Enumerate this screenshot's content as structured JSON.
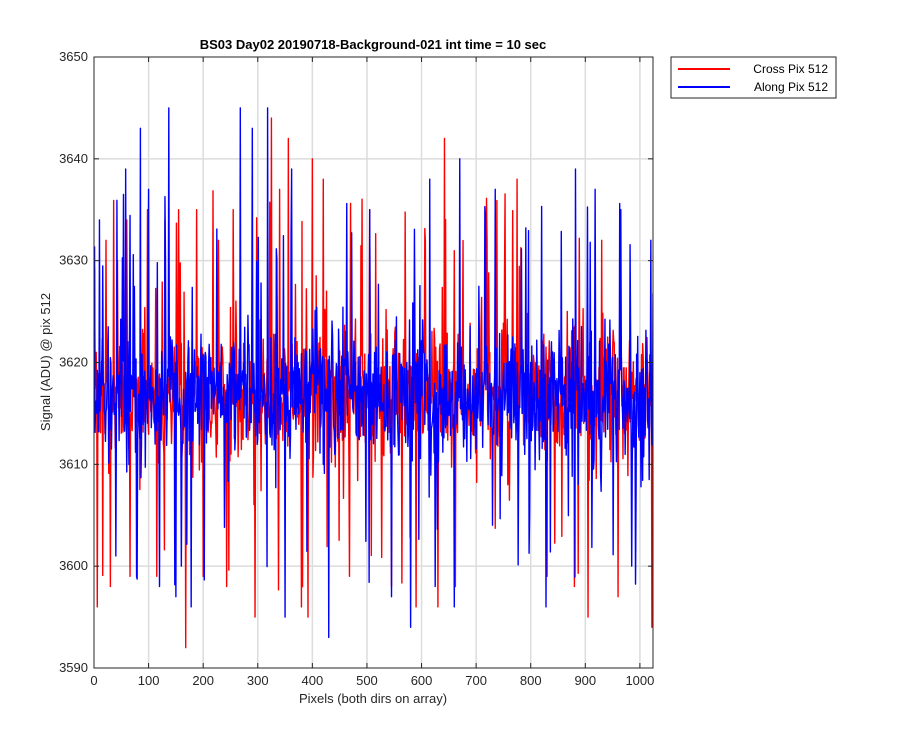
{
  "chart_data": {
    "type": "line",
    "title": "BS03 Day02 20190718-Background-021 int time = 10 sec",
    "xlabel": "Pixels (both dirs on array)",
    "ylabel": "Signal (ADU) @ pix 512",
    "xlim": [
      0,
      1024
    ],
    "ylim": [
      3590,
      3650
    ],
    "xticks": [
      0,
      100,
      200,
      300,
      400,
      500,
      600,
      700,
      800,
      900,
      1000
    ],
    "yticks": [
      3590,
      3600,
      3610,
      3620,
      3630,
      3640,
      3650
    ],
    "grid": true,
    "legend_position": "outside-top-right",
    "series": [
      {
        "name": "Cross Pix 512",
        "color": "#ff0000",
        "mean": 3617,
        "spread": 6,
        "seed": 7,
        "n_points": 1024,
        "x_start": 1,
        "peaks": [
          {
            "x": 4,
            "y": 3621
          },
          {
            "x": 6,
            "y": 3596
          },
          {
            "x": 22,
            "y": 3632
          },
          {
            "x": 30,
            "y": 3598
          },
          {
            "x": 43,
            "y": 3630
          },
          {
            "x": 60,
            "y": 3634
          },
          {
            "x": 66,
            "y": 3599
          },
          {
            "x": 98,
            "y": 3635
          },
          {
            "x": 115,
            "y": 3599
          },
          {
            "x": 130,
            "y": 3634
          },
          {
            "x": 155,
            "y": 3635
          },
          {
            "x": 168,
            "y": 3592
          },
          {
            "x": 188,
            "y": 3635
          },
          {
            "x": 200,
            "y": 3599
          },
          {
            "x": 228,
            "y": 3632
          },
          {
            "x": 243,
            "y": 3598
          },
          {
            "x": 255,
            "y": 3635
          },
          {
            "x": 295,
            "y": 3595
          },
          {
            "x": 325,
            "y": 3644
          },
          {
            "x": 340,
            "y": 3637
          },
          {
            "x": 356,
            "y": 3642
          },
          {
            "x": 380,
            "y": 3596
          },
          {
            "x": 392,
            "y": 3595
          },
          {
            "x": 400,
            "y": 3640
          },
          {
            "x": 420,
            "y": 3638
          },
          {
            "x": 468,
            "y": 3599
          },
          {
            "x": 505,
            "y": 3635
          },
          {
            "x": 545,
            "y": 3598
          },
          {
            "x": 590,
            "y": 3596
          },
          {
            "x": 630,
            "y": 3596
          },
          {
            "x": 642,
            "y": 3642
          },
          {
            "x": 662,
            "y": 3598
          },
          {
            "x": 720,
            "y": 3632
          },
          {
            "x": 775,
            "y": 3638
          },
          {
            "x": 830,
            "y": 3599
          },
          {
            "x": 880,
            "y": 3598
          },
          {
            "x": 905,
            "y": 3595
          },
          {
            "x": 930,
            "y": 3632
          },
          {
            "x": 960,
            "y": 3597
          },
          {
            "x": 1022,
            "y": 3594
          }
        ]
      },
      {
        "name": "Along Pix 512",
        "color": "#0000ff",
        "mean": 3617,
        "spread": 6,
        "seed": 19,
        "n_points": 1024,
        "x_start": 1,
        "peaks": [
          {
            "x": 10,
            "y": 3634
          },
          {
            "x": 40,
            "y": 3601
          },
          {
            "x": 58,
            "y": 3639
          },
          {
            "x": 78,
            "y": 3599
          },
          {
            "x": 85,
            "y": 3643
          },
          {
            "x": 100,
            "y": 3637
          },
          {
            "x": 120,
            "y": 3598
          },
          {
            "x": 137,
            "y": 3645
          },
          {
            "x": 150,
            "y": 3597
          },
          {
            "x": 160,
            "y": 3600
          },
          {
            "x": 178,
            "y": 3596
          },
          {
            "x": 268,
            "y": 3645
          },
          {
            "x": 290,
            "y": 3643
          },
          {
            "x": 318,
            "y": 3645
          },
          {
            "x": 350,
            "y": 3595
          },
          {
            "x": 362,
            "y": 3639
          },
          {
            "x": 430,
            "y": 3593
          },
          {
            "x": 505,
            "y": 3635
          },
          {
            "x": 545,
            "y": 3597
          },
          {
            "x": 580,
            "y": 3594
          },
          {
            "x": 615,
            "y": 3638
          },
          {
            "x": 625,
            "y": 3598
          },
          {
            "x": 660,
            "y": 3596
          },
          {
            "x": 670,
            "y": 3640
          },
          {
            "x": 735,
            "y": 3637
          },
          {
            "x": 828,
            "y": 3596
          },
          {
            "x": 882,
            "y": 3639
          },
          {
            "x": 918,
            "y": 3637
          },
          {
            "x": 965,
            "y": 3635
          },
          {
            "x": 985,
            "y": 3600
          },
          {
            "x": 1020,
            "y": 3632
          }
        ]
      }
    ]
  }
}
